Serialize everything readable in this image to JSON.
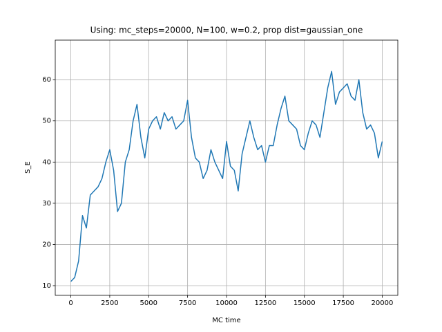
{
  "chart_data": {
    "type": "line",
    "title": "Using: mc_steps=20000, N=100, w=0.2, prop dist=gaussian_one",
    "x_label": "MC time",
    "y_label": "S_E",
    "x": [
      0,
      250,
      500,
      750,
      1000,
      1250,
      1500,
      1750,
      2000,
      2250,
      2500,
      2750,
      3000,
      3250,
      3500,
      3750,
      4000,
      4250,
      4500,
      4750,
      5000,
      5250,
      5500,
      5750,
      6000,
      6250,
      6500,
      6750,
      7000,
      7250,
      7500,
      7750,
      8000,
      8250,
      8500,
      8750,
      9000,
      9250,
      9500,
      9750,
      10000,
      10250,
      10500,
      10750,
      11000,
      11250,
      11500,
      11750,
      12000,
      12250,
      12500,
      12750,
      13000,
      13250,
      13500,
      13750,
      14000,
      14250,
      14500,
      14750,
      15000,
      15250,
      15500,
      15750,
      16000,
      16250,
      16500,
      16750,
      17000,
      17250,
      17500,
      17750,
      18000,
      18250,
      18500,
      18750,
      19000,
      19250,
      19500,
      19750,
      20000
    ],
    "series": [
      {
        "name": "S_E",
        "color": "#1f77b4",
        "values": [
          11,
          12,
          16,
          27,
          24,
          32,
          33,
          34,
          36,
          40,
          43,
          38,
          28,
          30,
          40,
          43,
          50,
          54,
          46,
          41,
          48,
          50,
          51,
          48,
          52,
          50,
          51,
          48,
          49,
          50,
          55,
          46,
          41,
          40,
          36,
          38,
          43,
          40,
          38,
          36,
          45,
          39,
          38,
          33,
          42,
          46,
          50,
          46,
          43,
          44,
          40,
          44,
          44,
          49,
          53,
          56,
          50,
          49,
          48,
          44,
          43,
          47,
          50,
          49,
          46,
          52,
          58,
          62,
          54,
          57,
          58,
          59,
          56,
          55,
          60,
          52,
          48,
          49,
          47,
          41,
          45
        ]
      }
    ],
    "xlim": [
      -1000,
      21000
    ],
    "ylim": [
      7.65,
      69.6
    ],
    "xticks": [
      0,
      2500,
      5000,
      7500,
      10000,
      12500,
      15000,
      17500,
      20000
    ],
    "yticks": [
      10,
      20,
      30,
      40,
      50,
      60
    ],
    "grid": true
  }
}
